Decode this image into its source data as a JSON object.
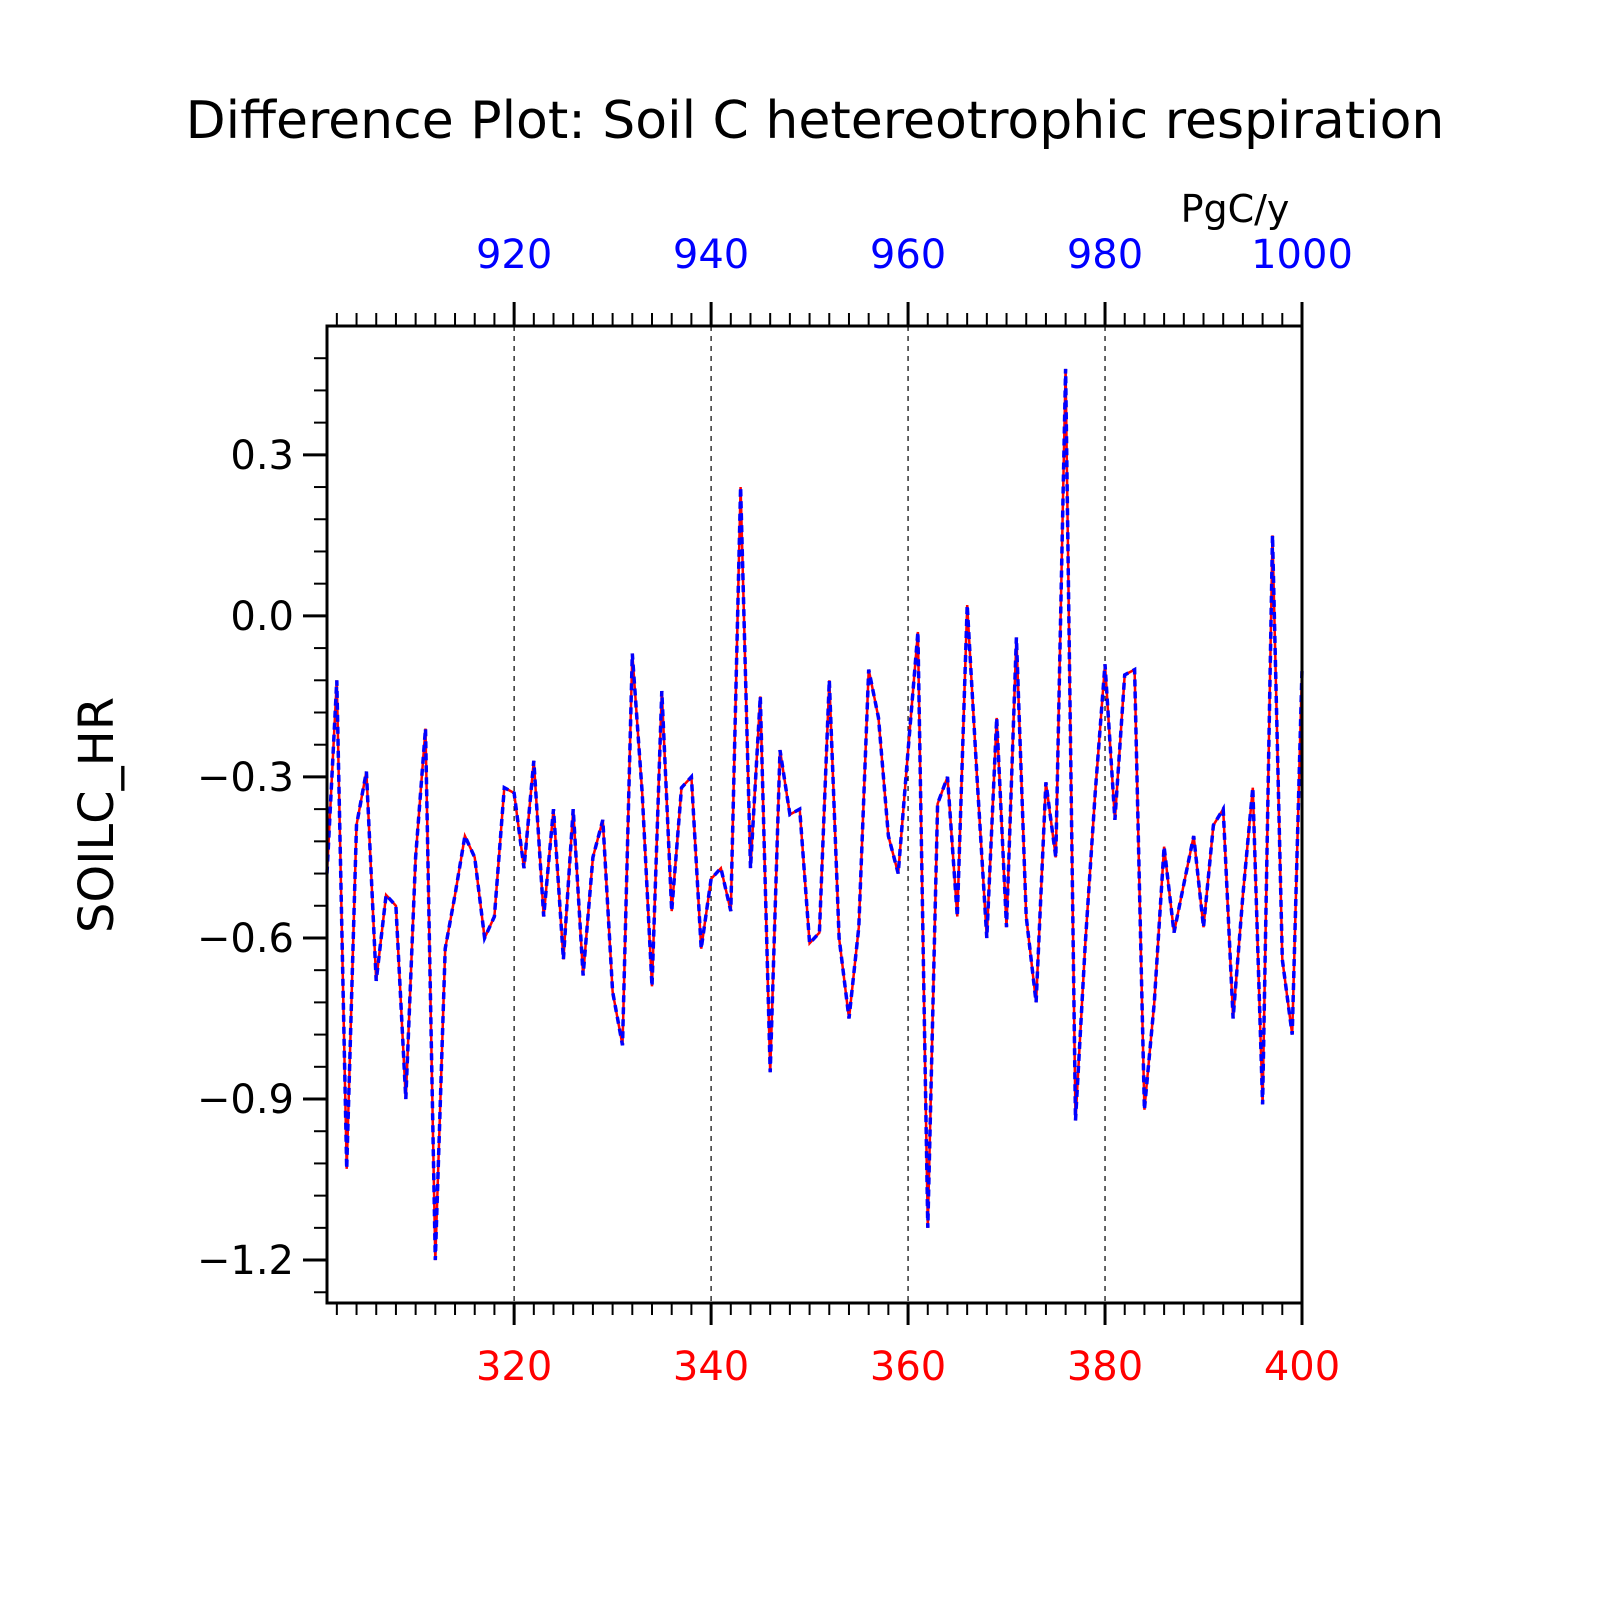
{
  "chart_data": {
    "type": "line",
    "title": "Difference Plot: Soil C hetereotrophic respiration",
    "units": "PgC/y",
    "ylabel": "SOILC_HR",
    "xlabel": "",
    "xlim": [
      301,
      400
    ],
    "ylim": [
      -1.28,
      0.54
    ],
    "bottom_axis": {
      "color": "#ff0000",
      "range": [
        301,
        400
      ],
      "ticks": [
        320,
        340,
        360,
        380,
        400
      ],
      "tick_labels": [
        "320",
        "340",
        "360",
        "380",
        "400"
      ]
    },
    "top_axis": {
      "color": "#0000ff",
      "range": [
        901,
        1000
      ],
      "ticks": [
        920,
        940,
        960,
        980,
        1000
      ],
      "tick_labels": [
        "920",
        "940",
        "960",
        "980",
        "1000"
      ]
    },
    "yticks": [
      0.3,
      0.0,
      -0.3,
      -0.6,
      -0.9,
      -1.2
    ],
    "ytick_labels": [
      "0.3",
      "0.0",
      "−0.3",
      "−0.6",
      "−0.9",
      "−1.2"
    ],
    "grid": "vertical dashed at major x ticks",
    "x": [
      301,
      302,
      303,
      304,
      305,
      306,
      307,
      308,
      309,
      310,
      311,
      312,
      313,
      314,
      315,
      316,
      317,
      318,
      319,
      320,
      321,
      322,
      323,
      324,
      325,
      326,
      327,
      328,
      329,
      330,
      331,
      332,
      333,
      334,
      335,
      336,
      337,
      338,
      339,
      340,
      341,
      342,
      343,
      344,
      345,
      346,
      347,
      348,
      349,
      350,
      351,
      352,
      353,
      354,
      355,
      356,
      357,
      358,
      359,
      360,
      361,
      362,
      363,
      364,
      365,
      366,
      367,
      368,
      369,
      370,
      371,
      372,
      373,
      374,
      375,
      376,
      377,
      378,
      379,
      380,
      381,
      382,
      383,
      384,
      385,
      386,
      387,
      388,
      389,
      390,
      391,
      392,
      393,
      394,
      395,
      396,
      397,
      398,
      399,
      400
    ],
    "series": [
      {
        "color": "#ff0000",
        "style": "solid",
        "values": [
          -0.48,
          -0.12,
          -1.03,
          -0.39,
          -0.29,
          -0.68,
          -0.52,
          -0.54,
          -0.9,
          -0.45,
          -0.21,
          -1.2,
          -0.62,
          -0.52,
          -0.41,
          -0.45,
          -0.6,
          -0.56,
          -0.32,
          -0.33,
          -0.47,
          -0.27,
          -0.56,
          -0.36,
          -0.64,
          -0.36,
          -0.67,
          -0.45,
          -0.38,
          -0.7,
          -0.8,
          -0.07,
          -0.33,
          -0.69,
          -0.14,
          -0.55,
          -0.32,
          -0.3,
          -0.62,
          -0.49,
          -0.47,
          -0.55,
          0.24,
          -0.47,
          -0.15,
          -0.85,
          -0.25,
          -0.37,
          -0.36,
          -0.61,
          -0.59,
          -0.12,
          -0.6,
          -0.75,
          -0.58,
          -0.1,
          -0.19,
          -0.41,
          -0.48,
          -0.25,
          -0.03,
          -1.14,
          -0.35,
          -0.3,
          -0.56,
          0.02,
          -0.3,
          -0.6,
          -0.19,
          -0.58,
          -0.04,
          -0.56,
          -0.72,
          -0.31,
          -0.45,
          0.46,
          -0.94,
          -0.61,
          -0.33,
          -0.09,
          -0.38,
          -0.11,
          -0.1,
          -0.92,
          -0.72,
          -0.43,
          -0.59,
          -0.5,
          -0.41,
          -0.58,
          -0.39,
          -0.36,
          -0.75,
          -0.52,
          -0.32,
          -0.91,
          0.15,
          -0.64,
          -0.78,
          -0.1
        ]
      },
      {
        "color": "#0000ff",
        "style": "dashed",
        "values": [
          -0.48,
          -0.12,
          -1.03,
          -0.39,
          -0.29,
          -0.68,
          -0.52,
          -0.54,
          -0.9,
          -0.45,
          -0.21,
          -1.2,
          -0.62,
          -0.52,
          -0.41,
          -0.45,
          -0.6,
          -0.56,
          -0.32,
          -0.33,
          -0.47,
          -0.27,
          -0.56,
          -0.36,
          -0.64,
          -0.36,
          -0.67,
          -0.45,
          -0.38,
          -0.7,
          -0.8,
          -0.07,
          -0.33,
          -0.69,
          -0.14,
          -0.55,
          -0.32,
          -0.3,
          -0.62,
          -0.49,
          -0.47,
          -0.55,
          0.24,
          -0.47,
          -0.15,
          -0.85,
          -0.25,
          -0.37,
          -0.36,
          -0.61,
          -0.59,
          -0.12,
          -0.6,
          -0.75,
          -0.58,
          -0.1,
          -0.19,
          -0.41,
          -0.48,
          -0.25,
          -0.03,
          -1.14,
          -0.35,
          -0.3,
          -0.56,
          0.02,
          -0.3,
          -0.6,
          -0.19,
          -0.58,
          -0.04,
          -0.56,
          -0.72,
          -0.31,
          -0.45,
          0.46,
          -0.94,
          -0.61,
          -0.33,
          -0.09,
          -0.38,
          -0.11,
          -0.1,
          -0.92,
          -0.72,
          -0.43,
          -0.59,
          -0.5,
          -0.41,
          -0.58,
          -0.39,
          -0.36,
          -0.75,
          -0.52,
          -0.32,
          -0.91,
          0.15,
          -0.64,
          -0.78,
          -0.1
        ]
      }
    ]
  }
}
